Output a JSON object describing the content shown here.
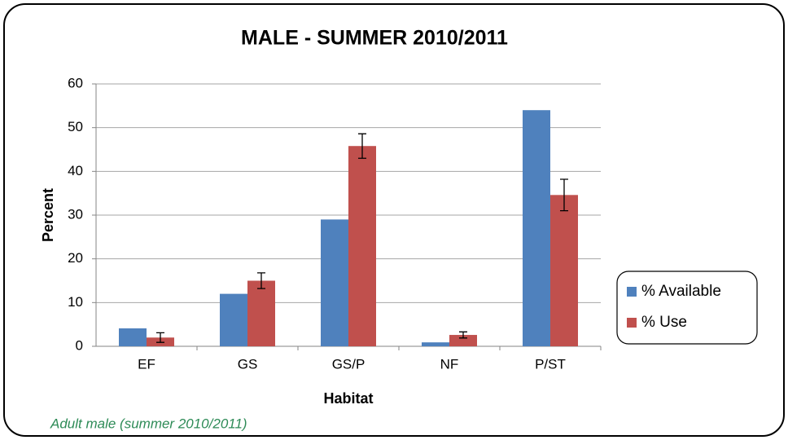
{
  "chart_data": {
    "type": "bar",
    "title": "MALE - SUMMER 2010/2011",
    "x_label": "Habitat",
    "y_label": "Percent",
    "caption": "Adult male (summer 2010/2011)",
    "categories": [
      "EF",
      "GS",
      "GS/P",
      "NF",
      "P/ST"
    ],
    "series": [
      {
        "name": "% Available",
        "color": "#4f81bd",
        "values": [
          4.1,
          12,
          29,
          0.9,
          54
        ]
      },
      {
        "name": "% Use",
        "color": "#c0504d",
        "values": [
          2,
          15,
          45.8,
          2.6,
          34.6
        ],
        "errors": [
          1.1,
          1.8,
          2.8,
          0.7,
          3.6
        ]
      }
    ],
    "ylim": [
      0,
      60
    ],
    "yticks": [
      0,
      10,
      20,
      30,
      40,
      50,
      60
    ],
    "grid": true,
    "legend": "right"
  }
}
